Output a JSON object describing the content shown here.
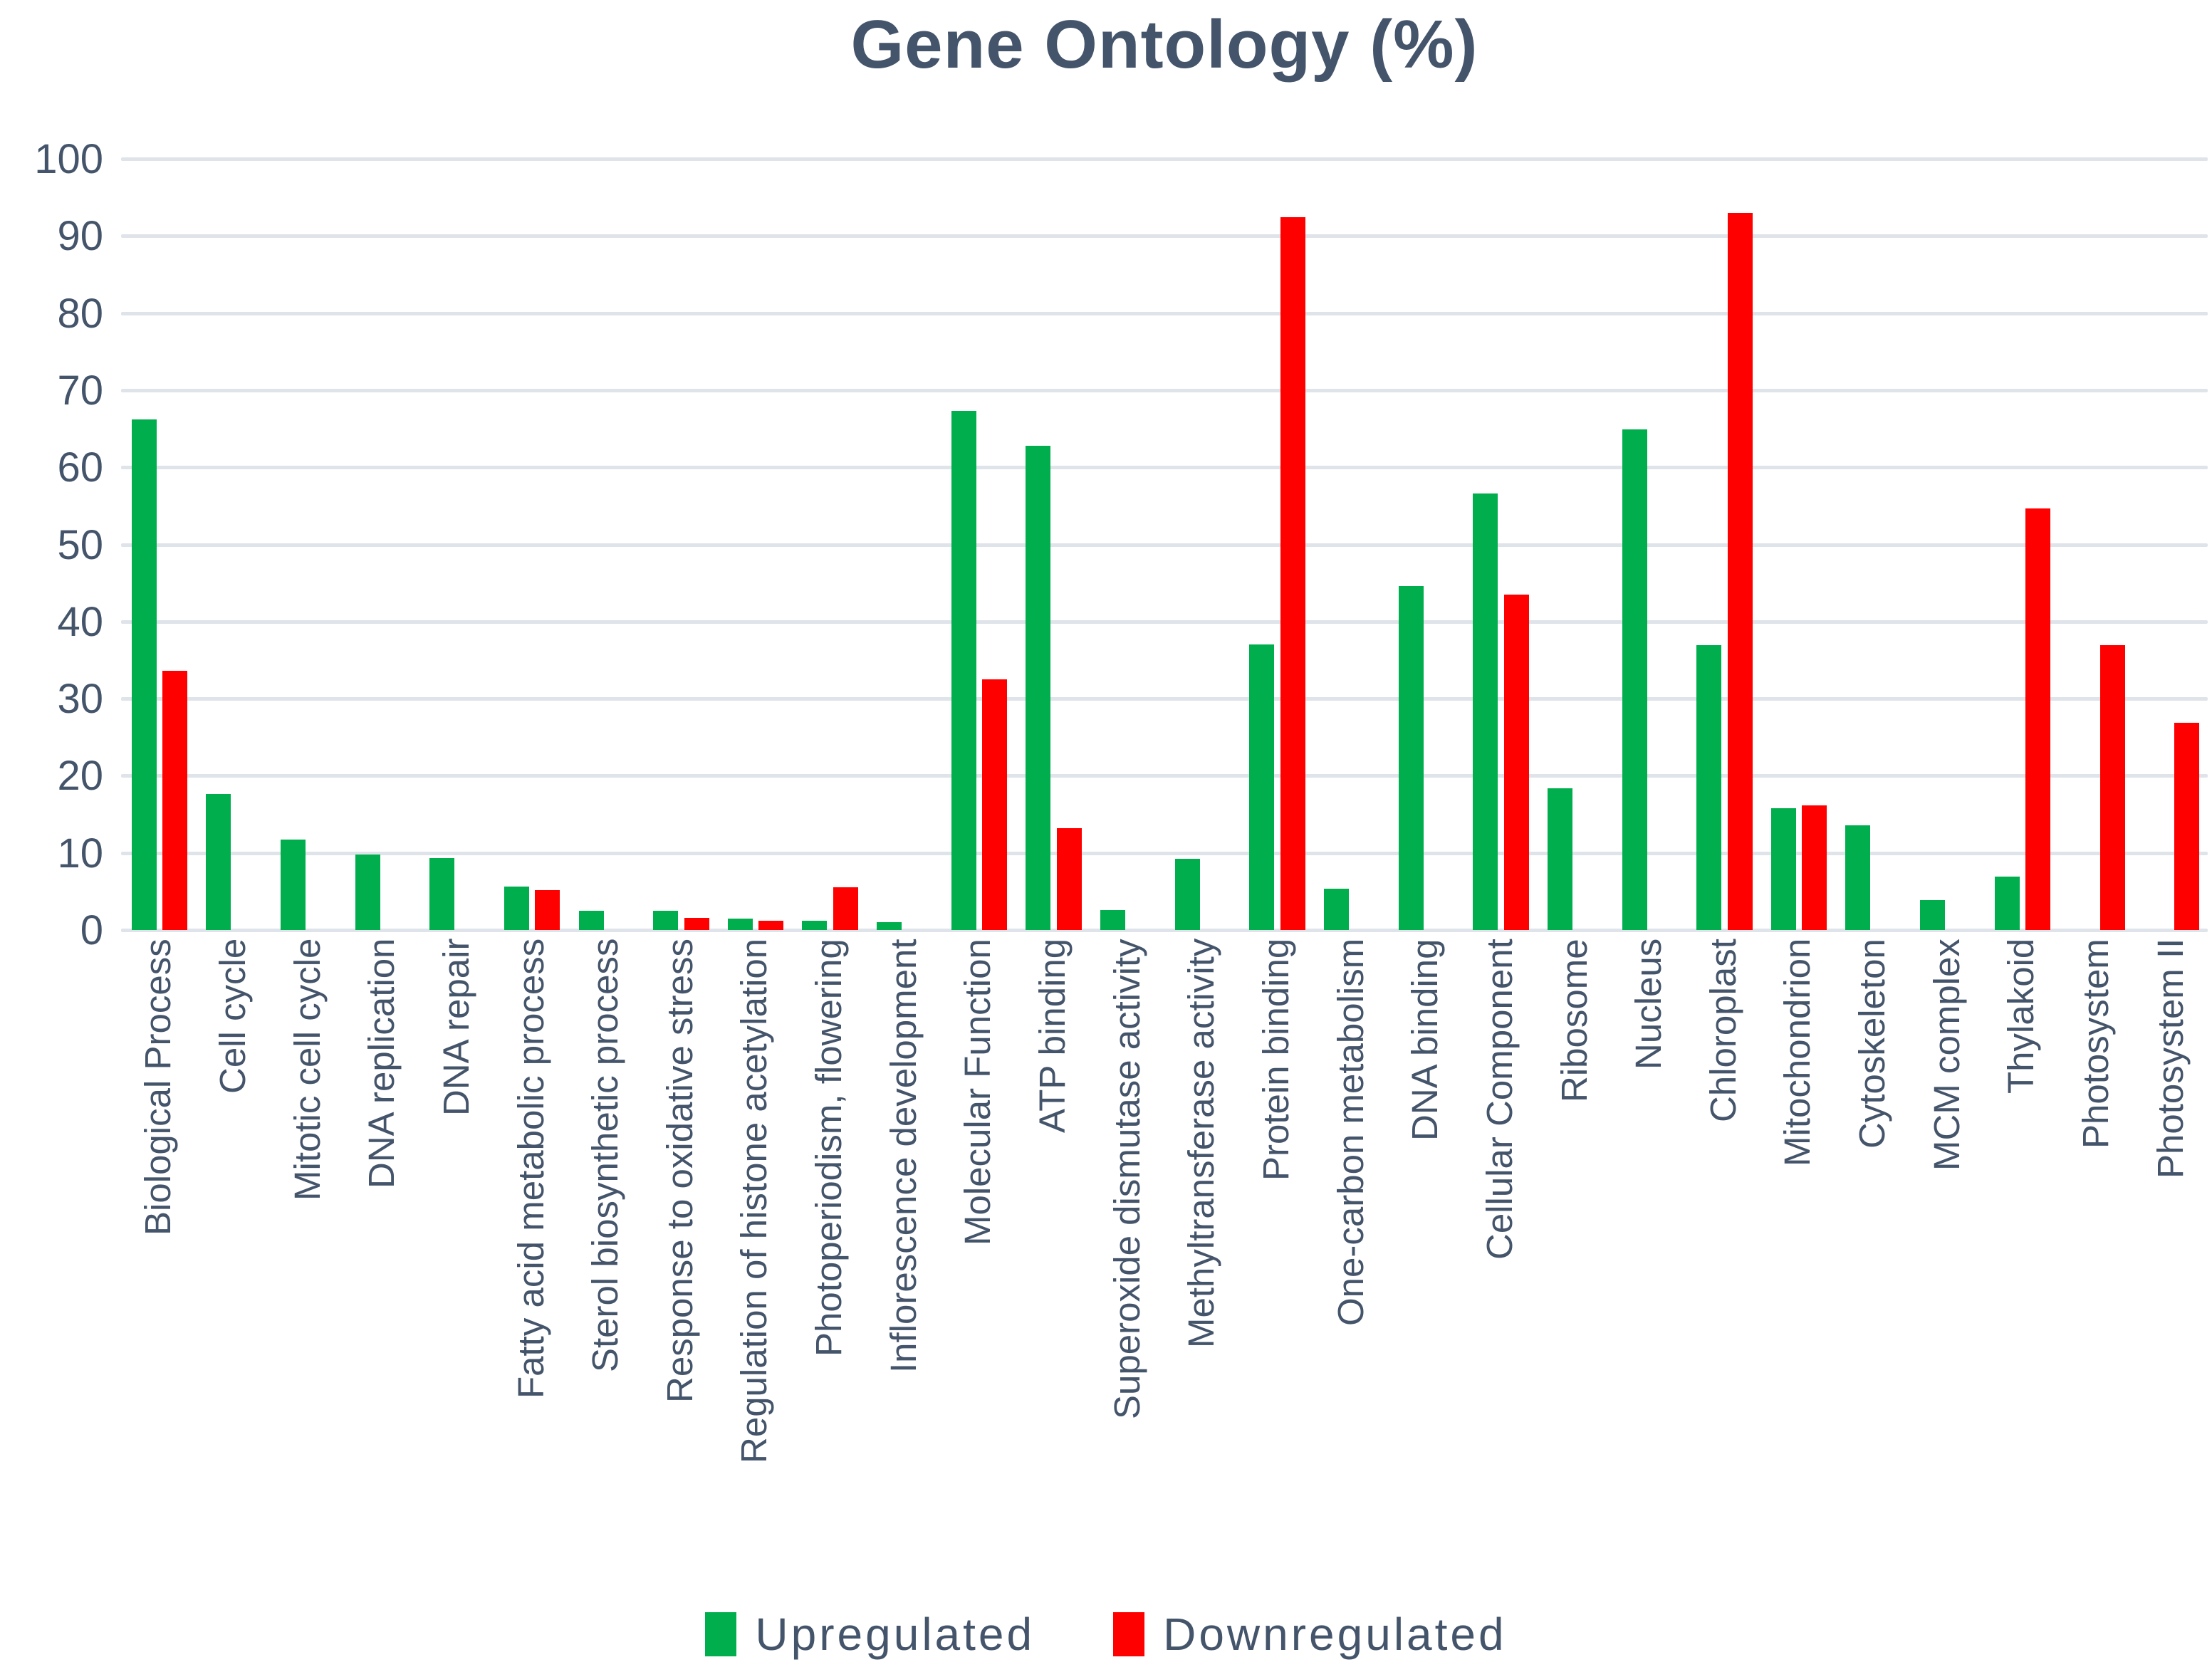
{
  "title": "Gene Ontology (%)",
  "legend": {
    "upregulated_label": "Upregulated",
    "downregulated_label": "Downregulated"
  },
  "colors": {
    "upregulated": "#00AE4D",
    "downregulated": "#FF0000",
    "text": "#44546A",
    "gridline": "#DFE3EA"
  },
  "y_axis": {
    "min": 0,
    "max": 100,
    "step": 10,
    "tick_labels": [
      "0",
      "10",
      "20",
      "30",
      "40",
      "50",
      "60",
      "70",
      "80",
      "90",
      "100"
    ]
  },
  "chart_data": {
    "type": "bar",
    "title": "Gene Ontology (%)",
    "xlabel": "",
    "ylabel": "",
    "ylim": [
      0,
      100
    ],
    "grid": true,
    "legend_position": "bottom",
    "categories": [
      "Biological Process",
      "Cell cycle",
      "Mitotic cell cycle",
      "DNA replication",
      "DNA repair",
      "Fatty acid metabolic process",
      "Sterol biosynthetic process",
      "Response to oxidative stress",
      "Regulation of histone acetylation",
      "Photoperiodism, flowering",
      "Inflorescence development",
      "Molecular Function",
      "ATP binding",
      "Superoxide dismutase activity",
      "Methyltransferase activity",
      "Protein binding",
      "One-carbon metabolism",
      "DNA binding",
      "Cellular Component",
      "Ribosome",
      "Nucleus",
      "Chloroplast",
      "Mitochondrion",
      "Cytoskeleton",
      "MCM complex",
      "Thylakoid",
      "Photosystem",
      "Photosystem II"
    ],
    "series": [
      {
        "name": "Upregulated",
        "color": "#00AE4D",
        "values": [
          66.2,
          17.6,
          11.7,
          9.8,
          9.3,
          5.6,
          2.5,
          2.5,
          1.5,
          1.2,
          1.0,
          67.3,
          62.8,
          2.6,
          9.2,
          37.0,
          5.4,
          44.6,
          56.6,
          18.4,
          64.9,
          36.9,
          15.8,
          13.6,
          3.9,
          6.9,
          0,
          0
        ]
      },
      {
        "name": "Downregulated",
        "color": "#FF0000",
        "values": [
          33.6,
          0,
          0,
          0,
          0,
          5.2,
          0,
          1.6,
          1.2,
          5.5,
          0,
          32.5,
          13.2,
          0,
          0,
          92.4,
          0,
          0,
          43.5,
          0,
          0,
          93.0,
          16.2,
          0,
          0,
          54.7,
          36.9,
          26.9
        ]
      }
    ]
  }
}
